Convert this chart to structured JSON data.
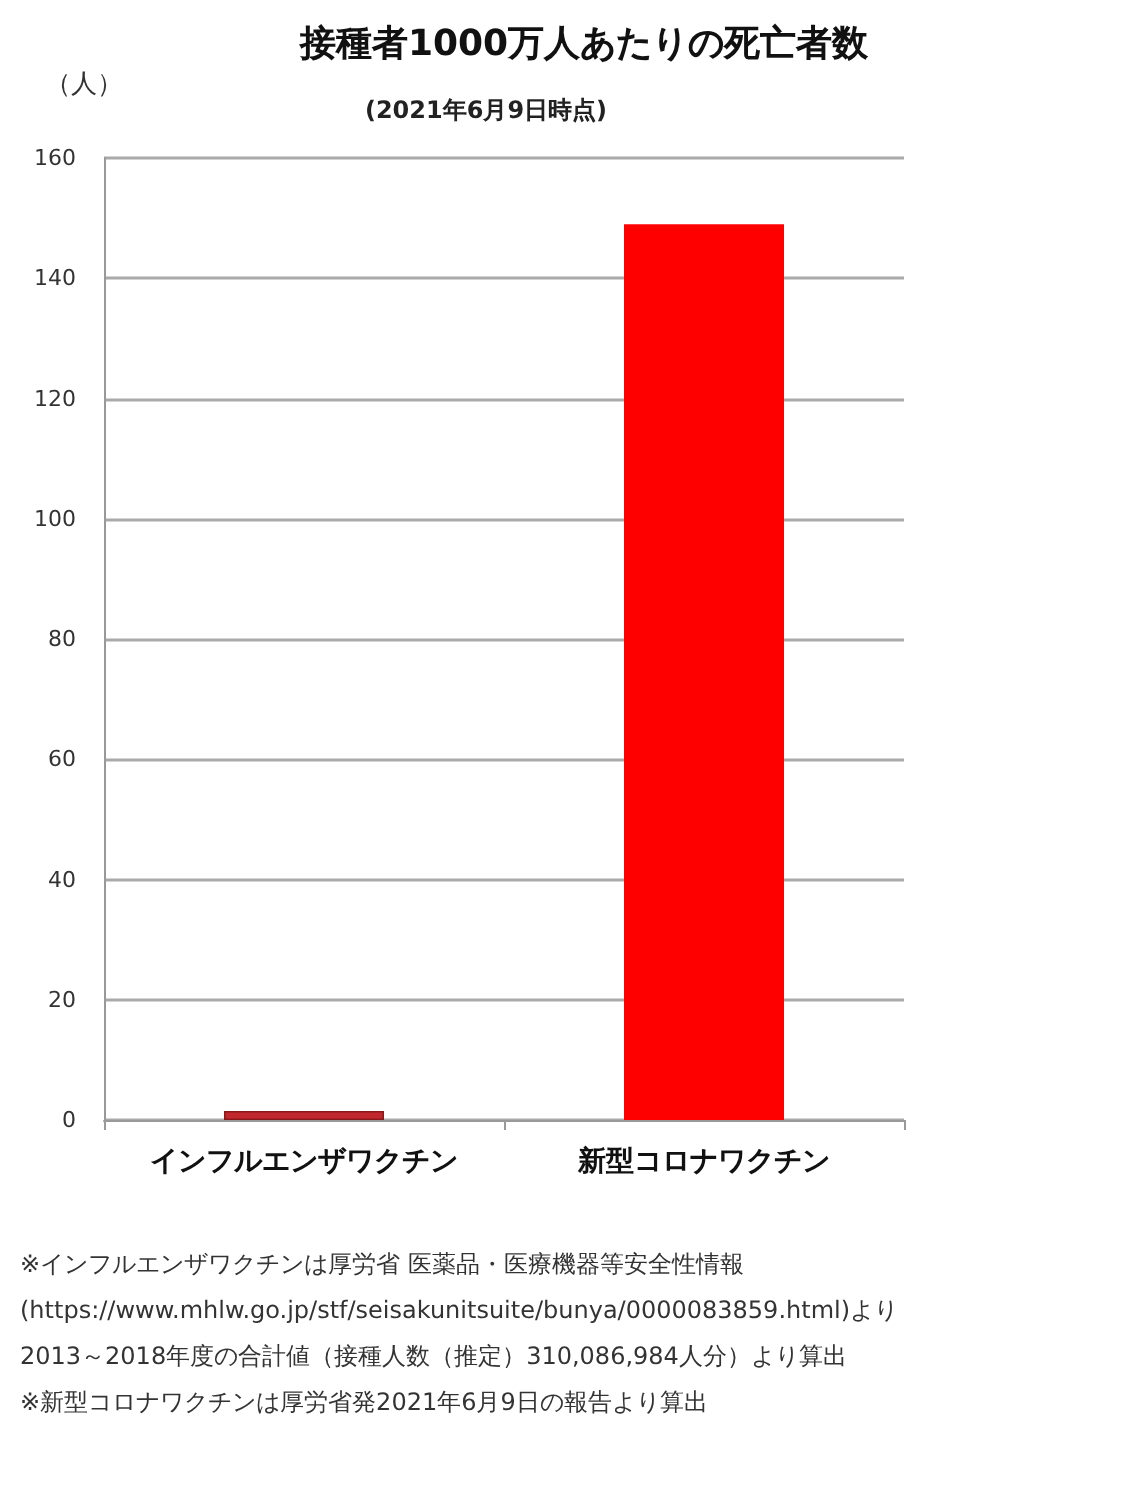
{
  "chart_data": {
    "type": "bar",
    "title": "接種者1000万人あたりの死亡者数",
    "subtitle": "(2021年6月9日時点)",
    "ylabel": "（人）",
    "categories": [
      "インフルエンザワクチン",
      "新型コロナワクチン"
    ],
    "values": [
      1.5,
      149
    ],
    "colors": [
      "#c0282d",
      "#ff0000"
    ],
    "ylim": [
      0,
      160
    ],
    "yticks": [
      0,
      20,
      40,
      60,
      80,
      100,
      120,
      140,
      160
    ],
    "grid": "y",
    "annotations": [
      "※インフルエンザワクチンは厚労省 医薬品・医療機器等安全性情報",
      "(https://www.mhlw.go.jp/stf/seisakunitsuite/bunya/0000083859.html)より",
      "2013～2018年度の合計値（接種人数（推定）310,086,984人分）より算出",
      "※新型コロナワクチンは厚労省発2021年6月9日の報告より算出"
    ]
  }
}
